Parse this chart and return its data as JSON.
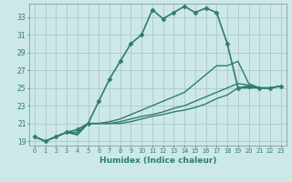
{
  "xlabel": "Humidex (Indice chaleur)",
  "ylabel": "",
  "background_color": "#cce8e8",
  "grid_color": "#b0c8c8",
  "line_color": "#2e7d6e",
  "xlim": [
    -0.5,
    23.5
  ],
  "ylim": [
    18.5,
    34.5
  ],
  "yticks": [
    19,
    21,
    23,
    25,
    27,
    29,
    31,
    33
  ],
  "xticks": [
    0,
    1,
    2,
    3,
    4,
    5,
    6,
    7,
    8,
    9,
    10,
    11,
    12,
    13,
    14,
    15,
    16,
    17,
    18,
    19,
    20,
    21,
    22,
    23
  ],
  "series": [
    {
      "x": [
        0,
        1,
        2,
        3,
        4,
        5,
        6,
        7,
        8,
        9,
        10,
        11,
        12,
        13,
        14,
        15,
        16,
        17,
        18,
        19,
        20,
        21,
        22,
        23
      ],
      "y": [
        19.5,
        19.0,
        19.5,
        20.0,
        20.3,
        21.0,
        23.5,
        26.0,
        28.0,
        30.0,
        31.0,
        33.8,
        32.8,
        33.5,
        34.2,
        33.5,
        34.0,
        33.5,
        30.0,
        25.0,
        25.2,
        25.0,
        25.0,
        25.2
      ],
      "marker": "D",
      "linestyle": "-",
      "linewidth": 1.2,
      "markersize": 2.5
    },
    {
      "x": [
        0,
        1,
        2,
        3,
        4,
        5,
        6,
        7,
        8,
        9,
        10,
        11,
        12,
        13,
        14,
        15,
        16,
        17,
        18,
        19,
        20,
        21,
        22,
        23
      ],
      "y": [
        19.5,
        19.0,
        19.5,
        20.0,
        20.0,
        21.0,
        21.0,
        21.2,
        21.5,
        22.0,
        22.5,
        23.0,
        23.5,
        24.0,
        24.5,
        25.5,
        26.5,
        27.5,
        27.5,
        28.0,
        25.5,
        25.0,
        25.0,
        25.2
      ],
      "marker": null,
      "linestyle": "-",
      "linewidth": 1.0,
      "markersize": 0
    },
    {
      "x": [
        0,
        1,
        2,
        3,
        4,
        5,
        6,
        7,
        8,
        9,
        10,
        11,
        12,
        13,
        14,
        15,
        16,
        17,
        18,
        19,
        20,
        21,
        22,
        23
      ],
      "y": [
        19.5,
        19.0,
        19.5,
        20.0,
        19.8,
        21.0,
        21.0,
        21.0,
        21.2,
        21.5,
        21.8,
        22.0,
        22.3,
        22.7,
        23.0,
        23.5,
        24.0,
        24.5,
        25.0,
        25.5,
        25.3,
        25.0,
        25.0,
        25.2
      ],
      "marker": null,
      "linestyle": "-",
      "linewidth": 1.0,
      "markersize": 0
    },
    {
      "x": [
        0,
        1,
        2,
        3,
        4,
        5,
        6,
        7,
        8,
        9,
        10,
        11,
        12,
        13,
        14,
        15,
        16,
        17,
        18,
        19,
        20,
        21,
        22,
        23
      ],
      "y": [
        19.5,
        19.0,
        19.5,
        20.0,
        19.7,
        21.0,
        21.0,
        21.0,
        21.0,
        21.2,
        21.5,
        21.8,
        22.0,
        22.3,
        22.5,
        22.8,
        23.2,
        23.8,
        24.2,
        25.0,
        25.0,
        25.0,
        25.0,
        25.2
      ],
      "marker": null,
      "linestyle": "-",
      "linewidth": 1.0,
      "markersize": 0
    }
  ]
}
